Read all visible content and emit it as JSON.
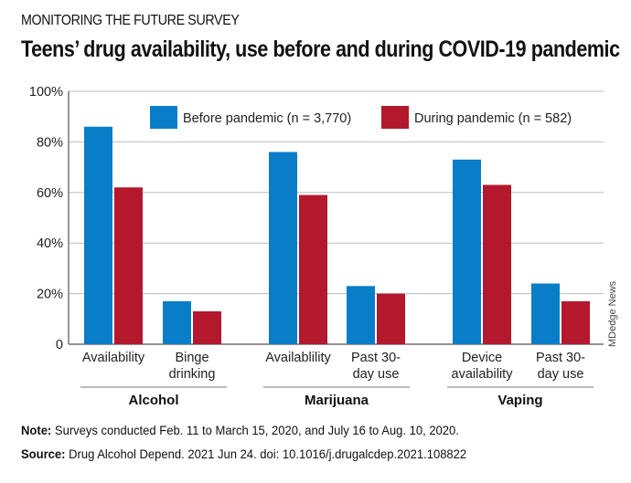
{
  "header": {
    "kicker": "MONITORING THE FUTURE SURVEY",
    "title": "Teens’ drug availability, use before and during COVID-19 pandemic"
  },
  "footer": {
    "note_label": "Note:",
    "note_text": " Surveys conducted Feb. 11 to March 15, 2020, and July 16 to Aug. 10, 2020.",
    "source_label": "Source:",
    "source_text": " Drug Alcohol Depend. 2021 Jun 24. doi: 10.1016/j.drugalcdep.2021.108822"
  },
  "watermark": "MDedge News",
  "chart_data": {
    "type": "bar",
    "ylim": [
      0,
      100
    ],
    "yticks": [
      0,
      20,
      40,
      60,
      80,
      100
    ],
    "ytick_labels": [
      "0",
      "20%",
      "40%",
      "60%",
      "80%",
      "100%"
    ],
    "grid": true,
    "legend_position": "top-center",
    "categories": [
      [
        "Availability"
      ],
      [
        "Binge",
        "drinking"
      ],
      [
        "Availablility"
      ],
      [
        "Past 30-",
        "day use"
      ],
      [
        "Device",
        "availability"
      ],
      [
        "Past 30-",
        "day use"
      ]
    ],
    "groups": [
      "Alcohol",
      "Marijuana",
      "Vaping"
    ],
    "series": [
      {
        "name": "Before pandemic (n = 3,770)",
        "color": "#0a7dc8",
        "values": [
          86,
          17,
          76,
          23,
          73,
          24
        ]
      },
      {
        "name": "During pandemic (n = 582)",
        "color": "#b3182d",
        "values": [
          62,
          13,
          59,
          20,
          63,
          17
        ]
      }
    ]
  }
}
